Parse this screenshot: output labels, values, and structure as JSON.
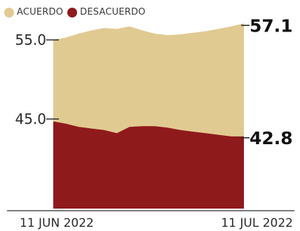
{
  "legend": {
    "acuerdo": "ACUERDO",
    "desacuerdo": "DESACUERDO"
  },
  "colors": {
    "acuerdo": "#e1ca91",
    "desacuerdo": "#8f1a1c",
    "axis": "#2a2a2a"
  },
  "chart_data": {
    "type": "area",
    "x_range": [
      "2022-06-11",
      "2022-07-11"
    ],
    "x_tick_labels": [
      "11 JUN 2022",
      "11 JUL 2022"
    ],
    "y_tick_labels": [
      "55.0",
      "45.0"
    ],
    "y_ticks": [
      55.0,
      45.0
    ],
    "ylim": [
      32.6,
      59.8
    ],
    "series": [
      {
        "name": "ACUERDO",
        "end_label": "57.1",
        "values": [
          55.0,
          55.3,
          55.8,
          56.2,
          56.5,
          56.4,
          56.7,
          56.2,
          55.8,
          55.6,
          55.7,
          55.9,
          56.1,
          56.4,
          56.7,
          57.1
        ]
      },
      {
        "name": "DESACUERDO",
        "end_label": "42.8",
        "values": [
          44.7,
          44.4,
          44.0,
          43.8,
          43.6,
          43.2,
          44.0,
          44.1,
          44.1,
          43.9,
          43.6,
          43.4,
          43.2,
          43.0,
          42.8,
          42.8
        ]
      }
    ]
  }
}
